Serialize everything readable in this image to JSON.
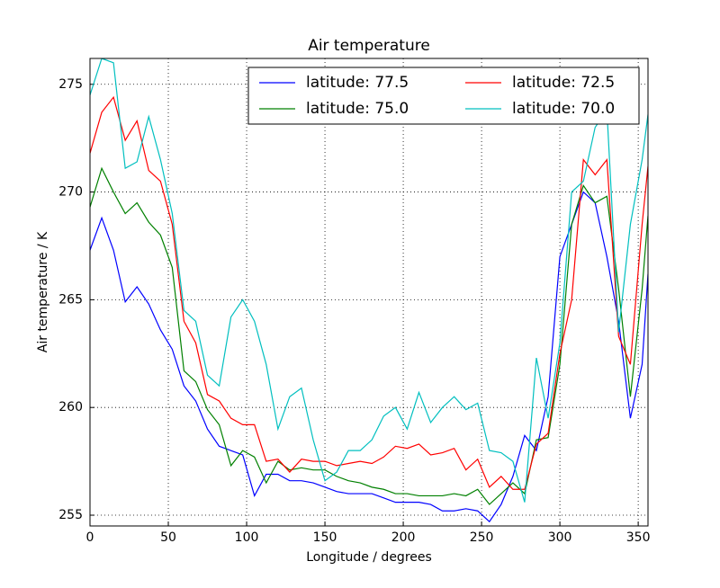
{
  "chart_data": {
    "type": "line",
    "title": "Air temperature",
    "xlabel": "Longitude / degrees",
    "ylabel": "Air temperature / K",
    "x": [
      0,
      7.5,
      15,
      22.5,
      30,
      37.5,
      45,
      52.5,
      60,
      67.5,
      75,
      82.5,
      90,
      97.5,
      105,
      112.5,
      120,
      127.5,
      135,
      142.5,
      150,
      157.5,
      165,
      172.5,
      180,
      187.5,
      195,
      202.5,
      210,
      217.5,
      225,
      232.5,
      240,
      247.5,
      255,
      262.5,
      270,
      277.5,
      285,
      292.5,
      300,
      307.5,
      315,
      322.5,
      330,
      337.5,
      345,
      352.5,
      356.25
    ],
    "series": [
      {
        "name": "latitude: 77.5",
        "color": "#0000ff",
        "values": [
          267.3,
          268.8,
          267.3,
          264.9,
          265.6,
          264.8,
          263.6,
          262.7,
          261.0,
          260.3,
          259.0,
          258.2,
          258.0,
          257.8,
          255.9,
          256.9,
          256.9,
          256.6,
          256.6,
          256.5,
          256.3,
          256.1,
          256.0,
          256.0,
          256.0,
          255.8,
          255.6,
          255.6,
          255.6,
          255.5,
          255.2,
          255.2,
          255.3,
          255.2,
          254.7,
          255.5,
          256.8,
          258.7,
          258.0,
          260.5,
          267.0,
          268.5,
          270.0,
          269.5,
          267.0,
          264.0,
          259.5,
          262.0,
          266.2
        ]
      },
      {
        "name": "latitude: 75.0",
        "color": "#008000",
        "values": [
          269.3,
          271.1,
          270.0,
          269.0,
          269.5,
          268.6,
          268.0,
          266.5,
          261.7,
          261.2,
          259.9,
          259.2,
          257.3,
          258.0,
          257.7,
          256.5,
          257.5,
          257.1,
          257.2,
          257.1,
          257.1,
          256.8,
          256.6,
          256.5,
          256.3,
          256.2,
          256.0,
          256.0,
          255.9,
          255.9,
          255.9,
          256.0,
          255.9,
          256.2,
          255.5,
          256.0,
          256.5,
          256.0,
          258.5,
          258.6,
          262.0,
          268.5,
          270.3,
          269.5,
          269.8,
          265.5,
          260.5,
          265.5,
          268.9
        ]
      },
      {
        "name": "latitude: 72.5",
        "color": "#ff0000",
        "values": [
          271.8,
          273.7,
          274.4,
          272.4,
          273.3,
          271.0,
          270.5,
          268.5,
          264.0,
          263.0,
          260.6,
          260.3,
          259.5,
          259.2,
          259.2,
          257.5,
          257.6,
          257.0,
          257.6,
          257.5,
          257.5,
          257.3,
          257.4,
          257.5,
          257.4,
          257.7,
          258.2,
          258.1,
          258.3,
          257.8,
          257.9,
          258.1,
          257.1,
          257.6,
          256.3,
          256.8,
          256.2,
          256.2,
          258.3,
          258.8,
          262.5,
          265.0,
          271.5,
          270.8,
          271.5,
          263.3,
          262.0,
          268.5,
          271.2
        ]
      },
      {
        "name": "latitude: 70.0",
        "color": "#00bfbf",
        "values": [
          274.5,
          276.2,
          276.0,
          271.1,
          271.4,
          273.5,
          271.5,
          269.0,
          264.5,
          264.0,
          261.5,
          261.0,
          264.2,
          265.0,
          264.0,
          262.0,
          259.0,
          260.5,
          260.9,
          258.5,
          256.6,
          257.0,
          258.0,
          258.0,
          258.5,
          259.6,
          260.0,
          259.0,
          260.7,
          259.3,
          260.0,
          260.5,
          259.9,
          260.2,
          258.0,
          257.9,
          257.5,
          255.6,
          262.3,
          259.5,
          263.0,
          270.0,
          270.5,
          273.0,
          273.8,
          263.5,
          268.5,
          271.5,
          273.6
        ]
      }
    ],
    "xlim": [
      0,
      356.25
    ],
    "ylim": [
      254.5,
      276.2
    ],
    "xticks": [
      0,
      50,
      100,
      150,
      200,
      250,
      300,
      350
    ],
    "yticks": [
      255,
      260,
      265,
      270,
      275
    ],
    "grid": true,
    "legend": "upper right",
    "legend_columns": 2
  }
}
